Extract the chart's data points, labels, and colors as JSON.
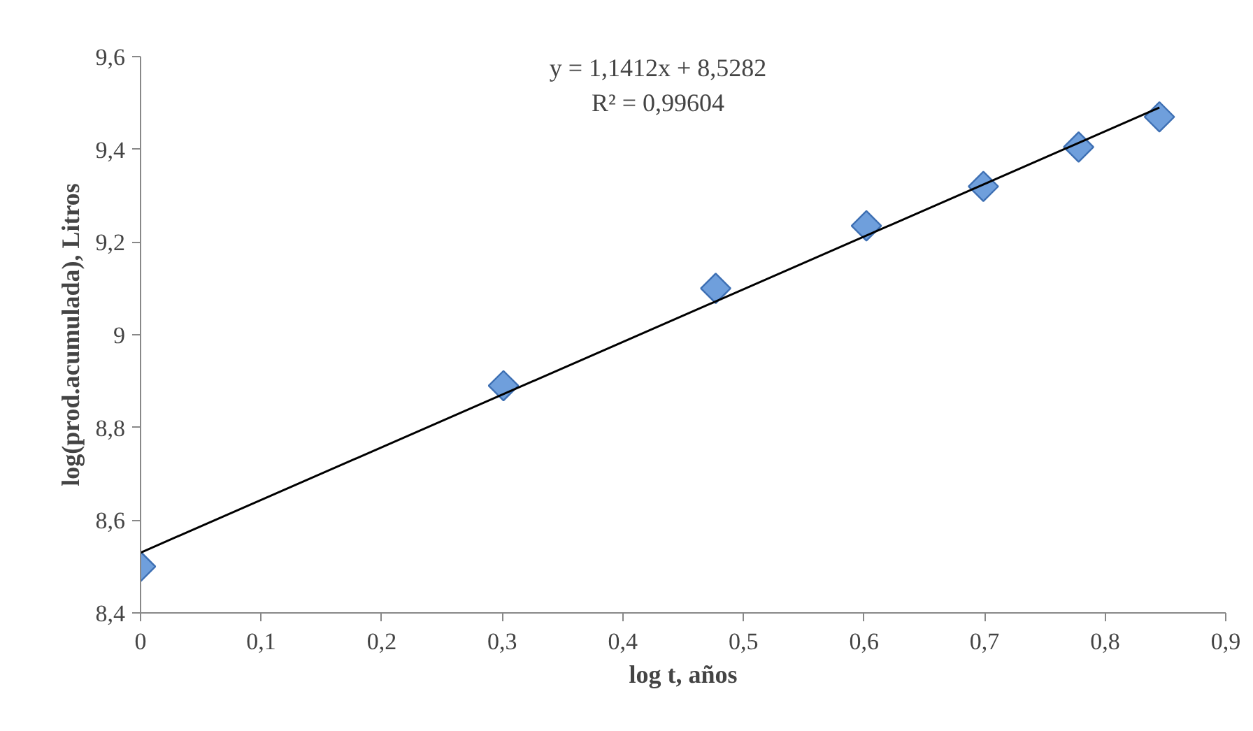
{
  "chart_data": {
    "type": "scatter",
    "xlabel": "log t, años",
    "ylabel": "log(prod.acumulada), Litros",
    "annotations": [
      "y = 1,1412x + 8,5282",
      "R² = 0,99604"
    ],
    "series": [
      {
        "color": "#6f9fdc",
        "marker": "diamond",
        "x": [
          0,
          0.301,
          0.477,
          0.602,
          0.699,
          0.778,
          0.845
        ],
        "values": [
          8.5,
          8.89,
          9.1,
          9.235,
          9.32,
          9.405,
          9.47
        ]
      },
      {
        "type": "line",
        "color": "#000000",
        "line_style": "solid",
        "x": [
          0,
          0.845
        ],
        "values": [
          8.53,
          9.49
        ]
      }
    ],
    "xlim": [
      0,
      0.9
    ],
    "xticks": [
      0,
      {
        "value": 0.1,
        "label": "0,1"
      },
      {
        "value": 0.2,
        "label": "0,2"
      },
      {
        "value": 0.3,
        "label": "0,3"
      },
      {
        "value": 0.4,
        "label": "0,4"
      },
      {
        "value": 0.5,
        "label": "0,5"
      },
      {
        "value": 0.6,
        "label": "0,6"
      },
      {
        "value": 0.7,
        "label": "0,7"
      },
      {
        "value": 0.8,
        "label": "0,8"
      },
      {
        "value": 0.9,
        "label": "0,9"
      }
    ],
    "ylim": [
      8.4,
      9.6
    ],
    "yticks": [
      {
        "value": 8.4,
        "label": "8,4"
      },
      {
        "value": 8.6,
        "label": "8,6"
      },
      {
        "value": 8.8,
        "label": "8,8"
      },
      9,
      {
        "value": 9.2,
        "label": "9,2"
      },
      {
        "value": 9.4,
        "label": "9,4"
      },
      {
        "value": 9.6,
        "label": "9,6"
      }
    ],
    "grid": false
  }
}
